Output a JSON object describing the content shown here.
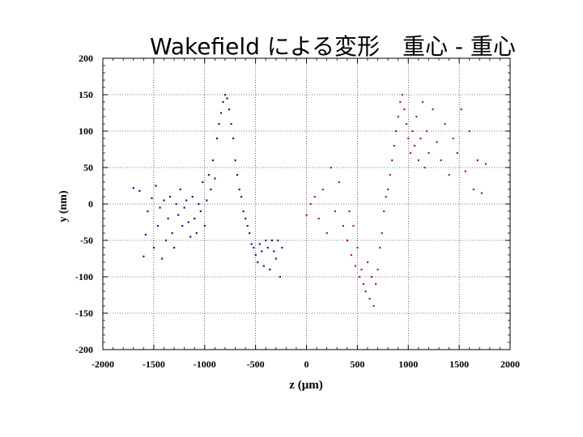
{
  "slide": {
    "title": "Wakefield による変形　重心 - 重心"
  },
  "chart_data": {
    "type": "scatter",
    "title": "Wakefield による変形　重心 - 重心",
    "xlabel": "z (μm)",
    "ylabel": "y (nm)",
    "xlim": [
      -2000,
      2000
    ],
    "ylim": [
      -200,
      200
    ],
    "xticks": [
      "-2000",
      "-1500",
      "-1000",
      "-500",
      "0",
      "500",
      "1000",
      "1500",
      "2000"
    ],
    "yticks": [
      "200",
      "150",
      "100",
      "50",
      "0",
      "-50",
      "-100",
      "-150",
      "-200"
    ],
    "grid": true,
    "legend": "none",
    "series": [
      {
        "color": "#1a1a8c",
        "points": [
          [
            -1700,
            22
          ],
          [
            -1640,
            18
          ],
          [
            -1600,
            -72
          ],
          [
            -1580,
            -42
          ],
          [
            -1560,
            -10
          ],
          [
            -1520,
            8
          ],
          [
            -1500,
            -60
          ],
          [
            -1480,
            25
          ],
          [
            -1460,
            -30
          ],
          [
            -1440,
            -5
          ],
          [
            -1420,
            -75
          ],
          [
            -1400,
            5
          ],
          [
            -1380,
            -50
          ],
          [
            -1360,
            -20
          ],
          [
            -1340,
            10
          ],
          [
            -1320,
            -40
          ],
          [
            -1300,
            -60
          ],
          [
            -1280,
            0
          ],
          [
            -1260,
            -15
          ],
          [
            -1240,
            20
          ],
          [
            -1220,
            -30
          ],
          [
            -1200,
            -5
          ],
          [
            -1180,
            5
          ],
          [
            -1160,
            -25
          ],
          [
            -1140,
            -45
          ],
          [
            -1120,
            10
          ],
          [
            -1100,
            -20
          ],
          [
            -1080,
            -40
          ],
          [
            -1060,
            0
          ],
          [
            -1040,
            -10
          ],
          [
            -1020,
            30
          ],
          [
            -1000,
            -30
          ],
          [
            -980,
            5
          ],
          [
            -960,
            40
          ],
          [
            -940,
            20
          ],
          [
            -920,
            60
          ],
          [
            -900,
            35
          ],
          [
            -880,
            90
          ],
          [
            -860,
            110
          ],
          [
            -840,
            125
          ],
          [
            -820,
            140
          ],
          [
            -800,
            150
          ],
          [
            -780,
            145
          ],
          [
            -760,
            130
          ],
          [
            -740,
            110
          ],
          [
            -720,
            90
          ],
          [
            -700,
            60
          ],
          [
            -680,
            40
          ],
          [
            -660,
            20
          ],
          [
            -640,
            10
          ],
          [
            -620,
            -10
          ],
          [
            -600,
            -20
          ],
          [
            -580,
            -30
          ],
          [
            -560,
            -40
          ],
          [
            -540,
            -55
          ],
          [
            -520,
            -60
          ],
          [
            -500,
            -70
          ],
          [
            -480,
            -80
          ],
          [
            -460,
            -55
          ],
          [
            -440,
            -65
          ],
          [
            -420,
            -85
          ],
          [
            -400,
            -50
          ],
          [
            -380,
            -60
          ],
          [
            -360,
            -90
          ],
          [
            -340,
            -50
          ],
          [
            -320,
            -65
          ],
          [
            -300,
            -75
          ],
          [
            -280,
            -50
          ],
          [
            -260,
            -100
          ],
          [
            -240,
            -60
          ]
        ]
      },
      {
        "color": "#b22222",
        "points": [
          [
            0,
            -15
          ],
          [
            40,
            0
          ],
          [
            80,
            10
          ],
          [
            120,
            -20
          ],
          [
            160,
            20
          ],
          [
            200,
            -40
          ],
          [
            240,
            50
          ],
          [
            280,
            -10
          ],
          [
            320,
            30
          ],
          [
            360,
            -30
          ],
          [
            400,
            -50
          ],
          [
            420,
            -10
          ],
          [
            440,
            -70
          ],
          [
            460,
            -30
          ],
          [
            480,
            -85
          ],
          [
            500,
            -60
          ],
          [
            520,
            -100
          ],
          [
            540,
            -90
          ],
          [
            560,
            -110
          ],
          [
            580,
            -120
          ],
          [
            600,
            -80
          ],
          [
            620,
            -130
          ],
          [
            640,
            -100
          ],
          [
            660,
            -140
          ],
          [
            680,
            -110
          ],
          [
            700,
            -90
          ],
          [
            720,
            -60
          ],
          [
            740,
            -40
          ],
          [
            760,
            -10
          ],
          [
            780,
            10
          ],
          [
            800,
            20
          ],
          [
            820,
            40
          ],
          [
            840,
            60
          ],
          [
            860,
            80
          ],
          [
            880,
            100
          ],
          [
            900,
            120
          ],
          [
            920,
            140
          ],
          [
            940,
            150
          ],
          [
            960,
            130
          ],
          [
            980,
            110
          ],
          [
            1000,
            90
          ],
          [
            1020,
            70
          ],
          [
            1040,
            100
          ],
          [
            1060,
            80
          ],
          [
            1080,
            120
          ],
          [
            1100,
            60
          ],
          [
            1120,
            90
          ],
          [
            1140,
            140
          ],
          [
            1160,
            50
          ],
          [
            1180,
            100
          ],
          [
            1200,
            70
          ],
          [
            1240,
            130
          ],
          [
            1280,
            85
          ],
          [
            1320,
            60
          ],
          [
            1360,
            110
          ],
          [
            1400,
            40
          ],
          [
            1440,
            90
          ],
          [
            1480,
            70
          ],
          [
            1520,
            130
          ],
          [
            1560,
            45
          ],
          [
            1600,
            100
          ],
          [
            1640,
            20
          ],
          [
            1680,
            60
          ],
          [
            1720,
            15
          ],
          [
            1760,
            55
          ]
        ]
      }
    ]
  }
}
